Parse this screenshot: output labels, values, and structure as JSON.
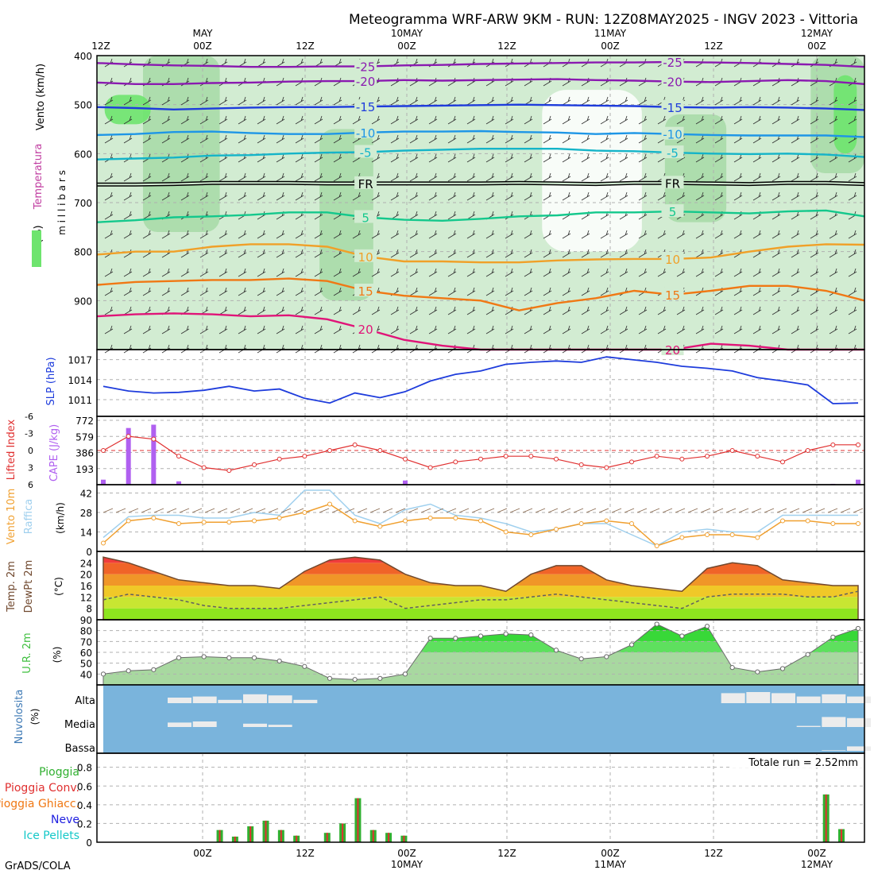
{
  "title": "Meteogramma WRF-ARW 9KM - RUN: 12Z08MAY2025 - INGV 2023 - Vittoria",
  "footer": "GrADS/COLA",
  "time_axis": {
    "hours": [
      "12Z",
      "00Z",
      "12Z",
      "00Z",
      "12Z",
      "00Z",
      "12Z",
      "00Z"
    ],
    "days": [
      "",
      "MAY",
      "",
      "10MAY",
      "",
      "11MAY",
      "",
      "12MAY"
    ],
    "bottom_days": [
      "",
      "",
      "",
      "10MAY",
      "",
      "11MAY",
      "",
      "12MAY"
    ]
  },
  "colors": {
    "frame": "#000000",
    "rh_light": "#d2ecd2",
    "rh_mid": "#a8dca8",
    "rh_dark": "#6ee46e",
    "slp": "#1e3cdc",
    "lifted": "#e03030",
    "cape": "#b060f0",
    "wind": "#f0a030",
    "gust": "#a0d0ee",
    "dew": "#606060",
    "cloud_bg": "#7ab4dc",
    "cloud": "#ececec",
    "rain": "#30b030",
    "rain_conv": "#e03030"
  },
  "chart_data": [
    {
      "type": "contour",
      "name": "upper_air",
      "ylabel_parts": [
        "Vento (km/h)",
        "Temperatura",
        "UR (%)",
        "millibars"
      ],
      "ylim": [
        400,
        1000
      ],
      "yticks": [
        400,
        500,
        600,
        700,
        800,
        900
      ],
      "isotherms": [
        {
          "label": "-25",
          "color": "#8a1ab0",
          "p": [
            415,
            418,
            420,
            421,
            423,
            423,
            422,
            422,
            420,
            419,
            417,
            416,
            415,
            414,
            414,
            413,
            414,
            415,
            417,
            419,
            423
          ]
        },
        {
          "label": "-20",
          "color": "#8a1ab0",
          "p": [
            455,
            458,
            458,
            456,
            455,
            453,
            452,
            452,
            450,
            451,
            450,
            449,
            448,
            450,
            451,
            453,
            454,
            452,
            450,
            452,
            458
          ]
        },
        {
          "label": "-15",
          "color": "#1e3cdc",
          "p": [
            505,
            507,
            510,
            508,
            506,
            505,
            505,
            504,
            503,
            502,
            501,
            500,
            501,
            502,
            503,
            505,
            506,
            505,
            506,
            508,
            511
          ]
        },
        {
          "label": "-10",
          "color": "#1e96e6",
          "p": [
            562,
            560,
            556,
            555,
            558,
            560,
            560,
            557,
            555,
            555,
            554,
            556,
            557,
            560,
            558,
            560,
            562,
            563,
            563,
            563,
            566
          ]
        },
        {
          "label": "-5",
          "color": "#14b4c8",
          "p": [
            612,
            610,
            608,
            604,
            603,
            600,
            598,
            597,
            594,
            592,
            590,
            590,
            590,
            594,
            595,
            598,
            600,
            601,
            600,
            602,
            607
          ]
        },
        {
          "label": "FR",
          "color": "#000000",
          "p": [
            663,
            663,
            662,
            660,
            660,
            660,
            661,
            661,
            661,
            661,
            661,
            660,
            661,
            662,
            660,
            660,
            661,
            662,
            660,
            660,
            662
          ]
        },
        {
          "label": "5",
          "color": "#14c88c",
          "p": [
            740,
            736,
            730,
            728,
            725,
            720,
            720,
            730,
            735,
            737,
            733,
            728,
            726,
            720,
            720,
            718,
            720,
            722,
            718,
            716,
            728
          ]
        },
        {
          "label": "10",
          "color": "#f0a028",
          "p": [
            806,
            800,
            800,
            790,
            785,
            785,
            790,
            810,
            820,
            820,
            822,
            822,
            818,
            816,
            815,
            815,
            812,
            800,
            790,
            785,
            786
          ]
        },
        {
          "label": "15",
          "color": "#f07814",
          "p": [
            868,
            862,
            860,
            858,
            858,
            855,
            860,
            880,
            890,
            895,
            900,
            920,
            905,
            895,
            880,
            888,
            880,
            870,
            870,
            880,
            900
          ]
        },
        {
          "label": "20",
          "color": "#e01478",
          "p": [
            932,
            928,
            926,
            928,
            932,
            930,
            938,
            958,
            980,
            992,
            1000,
            1000,
            1000,
            1000,
            1000,
            1000,
            988,
            992,
            1000,
            1000,
            1000
          ]
        }
      ],
      "rh_zones": [
        {
          "level": "70",
          "x": [
            0.06,
            0.16
          ],
          "p": [
            400,
            760
          ]
        },
        {
          "level": "70",
          "x": [
            0.29,
            0.36
          ],
          "p": [
            550,
            900
          ]
        },
        {
          "level": "70",
          "x": [
            0.74,
            0.82
          ],
          "p": [
            520,
            740
          ]
        },
        {
          "level": "70",
          "x": [
            0.93,
            1.0
          ],
          "p": [
            400,
            640
          ]
        },
        {
          "level": "90",
          "x": [
            0.96,
            0.99
          ],
          "p": [
            440,
            600
          ]
        },
        {
          "level": "90",
          "x": [
            0.01,
            0.07
          ],
          "p": [
            480,
            540
          ]
        }
      ]
    },
    {
      "type": "line",
      "name": "slp",
      "ylabel": "SLP (hPa)",
      "ylim": [
        1008.5,
        1018.5
      ],
      "yticks": [
        1011,
        1014,
        1017
      ],
      "y": [
        1013.0,
        1012.3,
        1012.0,
        1012.1,
        1012.4,
        1013.0,
        1012.3,
        1012.6,
        1011.2,
        1010.5,
        1012.0,
        1011.3,
        1012.2,
        1013.8,
        1014.8,
        1015.3,
        1016.3,
        1016.6,
        1016.8,
        1016.6,
        1017.4,
        1017.0,
        1016.6,
        1016.0,
        1015.7,
        1015.3,
        1014.3,
        1013.8,
        1013.2,
        1010.4,
        1010.5
      ]
    },
    {
      "type": "bar_line",
      "name": "cape_li",
      "ylabel_left": "Lifted Index",
      "ylabel_right": "CAPE (J/kg)",
      "li_ticks": [
        -6,
        -3,
        0,
        3,
        6
      ],
      "cape_ticks": [
        193,
        386,
        579,
        772
      ],
      "li": [
        0,
        -2.5,
        -2,
        1,
        3,
        3.5,
        2.5,
        1.5,
        1,
        0,
        -1,
        0,
        1.5,
        3,
        2,
        1.5,
        1,
        1,
        1.5,
        2.5,
        3,
        2,
        1,
        1.5,
        1,
        0,
        1,
        2,
        0,
        -1,
        -1
      ],
      "cape": [
        60,
        680,
        720,
        40,
        0,
        0,
        0,
        0,
        0,
        0,
        0,
        0,
        50,
        0,
        0,
        0,
        0,
        0,
        0,
        0,
        0,
        0,
        0,
        0,
        0,
        0,
        0,
        0,
        0,
        10,
        60
      ]
    },
    {
      "type": "line",
      "name": "wind10m",
      "ylabel_left": "Vento 10m",
      "ylabel_mid": "Raffica",
      "ylabel": "(km/h)",
      "ylim": [
        0,
        48
      ],
      "yticks": [
        0,
        14,
        28,
        42
      ],
      "wind": [
        6,
        22,
        24,
        20,
        21,
        21,
        22,
        24,
        28,
        34,
        22,
        18,
        22,
        24,
        24,
        22,
        14,
        12,
        16,
        20,
        22,
        20,
        4,
        10,
        12,
        12,
        10,
        22,
        22,
        20,
        20
      ],
      "gust": [
        10,
        25,
        26,
        26,
        24,
        24,
        28,
        26,
        44,
        44,
        26,
        20,
        30,
        34,
        26,
        24,
        20,
        14,
        16,
        20,
        20,
        12,
        4,
        14,
        16,
        14,
        14,
        26,
        26,
        26,
        26
      ]
    },
    {
      "type": "area",
      "name": "temp2m",
      "ylabel_parts": [
        "Temp. 2m",
        "DewPt 2m",
        "(°C)"
      ],
      "ylim": [
        4,
        28
      ],
      "yticks": [
        8,
        12,
        16,
        20,
        24
      ],
      "temp": [
        26,
        24,
        21,
        18,
        17,
        16,
        16,
        15,
        21,
        25,
        26,
        25,
        20,
        17,
        16,
        16,
        14,
        20,
        23,
        23,
        18,
        16,
        15,
        14,
        22,
        24,
        23,
        18,
        17,
        16,
        16
      ],
      "dew": [
        11,
        13,
        12,
        11,
        9,
        8,
        8,
        8,
        9,
        10,
        11,
        12,
        8,
        9,
        10,
        11,
        11,
        12,
        13,
        12,
        11,
        10,
        9,
        8,
        12,
        13,
        13,
        13,
        12,
        12,
        14
      ]
    },
    {
      "type": "area",
      "name": "rh2m",
      "ylabel_left": "U.R. 2m",
      "ylabel": "(%)",
      "ylim": [
        30,
        90
      ],
      "yticks": [
        40,
        50,
        60,
        70,
        80,
        90
      ],
      "rh": [
        40,
        43,
        44,
        55,
        56,
        55,
        55,
        52,
        47,
        36,
        35,
        36,
        40,
        73,
        73,
        75,
        77,
        76,
        62,
        54,
        56,
        67,
        86,
        75,
        84,
        46,
        42,
        45,
        58,
        74,
        82
      ]
    },
    {
      "type": "heatmap",
      "name": "clouds",
      "ylabel": "Nuvolosita (%)",
      "rows": [
        "Alta",
        "Media",
        "Bassa"
      ],
      "high": [
        0,
        0,
        0,
        0.5,
        0.6,
        0.3,
        0.8,
        0.7,
        0.3,
        0,
        0,
        0,
        0,
        0,
        0,
        0,
        0,
        0,
        0,
        0,
        0,
        0,
        0,
        0,
        0,
        0.9,
        1,
        0.9,
        0.6,
        0.8,
        0.6
      ],
      "mid": [
        0,
        0,
        0,
        0.4,
        0.5,
        0,
        0.3,
        0.2,
        0,
        0,
        0,
        0,
        0,
        0,
        0,
        0,
        0,
        0,
        0,
        0,
        0,
        0,
        0,
        0,
        0,
        0,
        0,
        0,
        0.1,
        0.9,
        0.8
      ],
      "low": [
        0,
        0,
        0,
        0,
        0,
        0,
        0,
        0,
        0,
        0,
        0,
        0,
        0,
        0,
        0,
        0,
        0,
        0,
        0,
        0,
        0,
        0,
        0,
        0,
        0,
        0,
        0,
        0,
        0,
        0.05,
        0.4
      ]
    },
    {
      "type": "bar",
      "name": "precip",
      "legend": [
        "Pioggia",
        "Pioggia Conv.",
        "Pioggia Ghiacc.",
        "Neve",
        "Ice Pellets"
      ],
      "legend_colors": [
        "#30b030",
        "#e03030",
        "#f07814",
        "#2020e0",
        "#14c8c8"
      ],
      "total": "Totale run = 2.52mm",
      "ylim": [
        0,
        0.95
      ],
      "yticks": [
        0,
        0.2,
        0.4,
        0.6,
        0.8
      ],
      "x": [
        0.16,
        0.18,
        0.2,
        0.22,
        0.24,
        0.26,
        0.28,
        0.3,
        0.32,
        0.34,
        0.36,
        0.38,
        0.4,
        0.42,
        0.44,
        0.46,
        0.48,
        0.95,
        0.97
      ],
      "rain": [
        0.13,
        0.06,
        0.17,
        0.23,
        0.13,
        0.07,
        0.0,
        0.1,
        0.2,
        0.47,
        0.13,
        0.1,
        0.07,
        0.0,
        0.0,
        0.0,
        0.0,
        0.51,
        0.14
      ]
    }
  ]
}
